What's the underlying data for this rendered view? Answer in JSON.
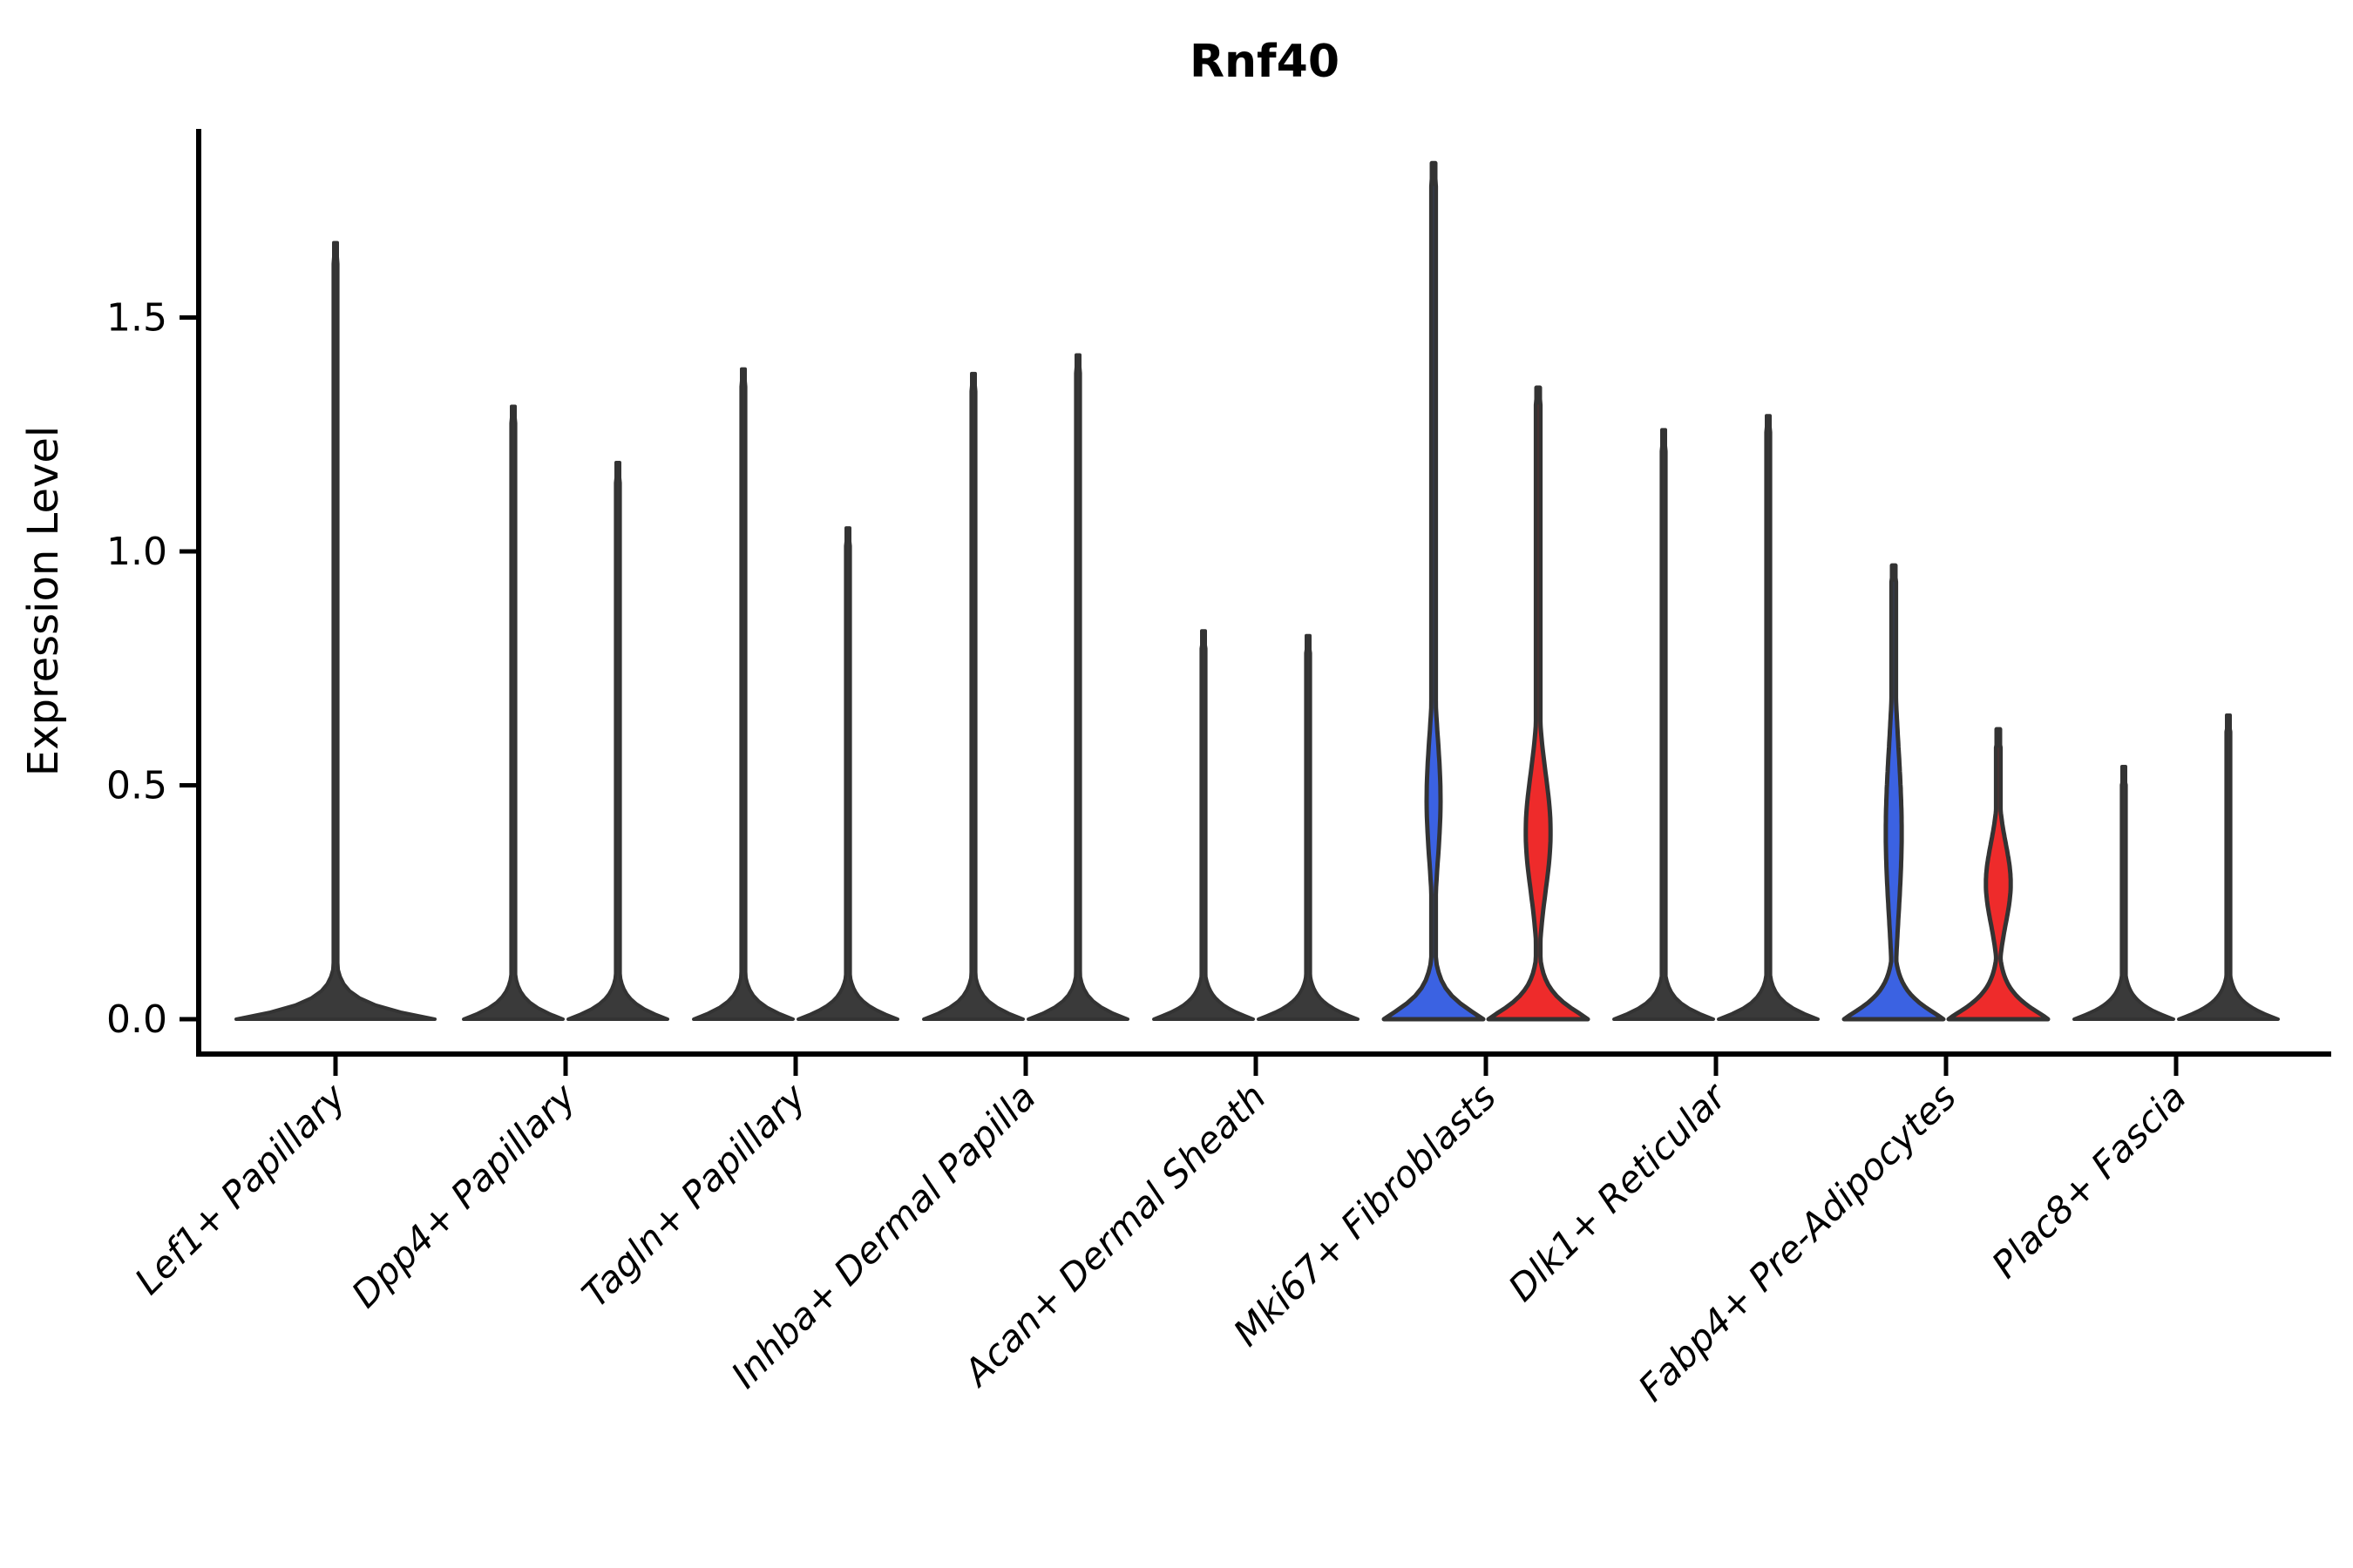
{
  "title": "Rnf40",
  "axes": {
    "ylabel": "Expression Level",
    "ytick_labels": [
      "0.0",
      "0.5",
      "1.0",
      "1.5"
    ],
    "ytick_values": [
      0.0,
      0.5,
      1.0,
      1.5
    ]
  },
  "colors": {
    "background": "#ffffff",
    "stroke": "#333333",
    "dark_fill": "#3a3a3a",
    "blue": "#3b62e2",
    "red": "#ee2b2b"
  },
  "chart_data": {
    "type": "violin",
    "title": "Rnf40",
    "xlabel": "",
    "ylabel": "Expression Level",
    "ylim": [
      -0.08,
      1.9
    ],
    "yticks": [
      0.0,
      0.5,
      1.0,
      1.5
    ],
    "grid": false,
    "legend": "none",
    "categories": [
      "Lef1+ Papillary",
      "Dpp4+ Papillary",
      "Tagln+ Papillary",
      "Inhba+ Dermal Papilla",
      "Acan+ Dermal Sheath",
      "Mki67+ Fibroblasts",
      "Dlk1+ Reticular",
      "Fabp4+ Pre-Adipocytes",
      "Plac8+ Fascia"
    ],
    "violins": [
      {
        "category": "Lef1+ Papillary",
        "layout": "single",
        "violins": [
          {
            "position": "center",
            "max_expression": 1.66,
            "bulk_at_zero": true,
            "fill": "dark"
          }
        ]
      },
      {
        "category": "Dpp4+ Papillary",
        "layout": "split",
        "violins": [
          {
            "position": "left",
            "max_expression": 1.31,
            "bulk_at_zero": true,
            "fill": "dark"
          },
          {
            "position": "right",
            "max_expression": 1.19,
            "bulk_at_zero": true,
            "fill": "dark"
          }
        ]
      },
      {
        "category": "Tagln+ Papillary",
        "layout": "split",
        "violins": [
          {
            "position": "left",
            "max_expression": 1.39,
            "bulk_at_zero": true,
            "fill": "dark"
          },
          {
            "position": "right",
            "max_expression": 1.05,
            "bulk_at_zero": true,
            "fill": "dark"
          }
        ]
      },
      {
        "category": "Inhba+ Dermal Papilla",
        "layout": "split",
        "violins": [
          {
            "position": "left",
            "max_expression": 1.38,
            "bulk_at_zero": true,
            "fill": "dark"
          },
          {
            "position": "right",
            "max_expression": 1.42,
            "bulk_at_zero": true,
            "fill": "dark"
          }
        ]
      },
      {
        "category": "Acan+ Dermal Sheath",
        "layout": "split",
        "violins": [
          {
            "position": "left",
            "max_expression": 0.83,
            "bulk_at_zero": true,
            "fill": "dark"
          },
          {
            "position": "right",
            "max_expression": 0.82,
            "bulk_at_zero": true,
            "fill": "dark"
          }
        ]
      },
      {
        "category": "Mki67+ Fibroblasts",
        "layout": "split",
        "violins": [
          {
            "position": "left",
            "max_expression": 1.83,
            "bulk_at_zero": true,
            "fill": "blue",
            "bulge": {
              "center": 0.47,
              "span": [
                0.22,
                0.78
              ],
              "halfwidth_frac": 0.14
            }
          },
          {
            "position": "right",
            "max_expression": 1.35,
            "bulk_at_zero": true,
            "fill": "red",
            "bulge": {
              "center": 0.4,
              "span": [
                0.15,
                0.68
              ],
              "halfwidth_frac": 0.25
            }
          }
        ]
      },
      {
        "category": "Dlk1+ Reticular",
        "layout": "split",
        "violins": [
          {
            "position": "left",
            "max_expression": 1.26,
            "bulk_at_zero": true,
            "fill": "dark"
          },
          {
            "position": "right",
            "max_expression": 1.29,
            "bulk_at_zero": true,
            "fill": "dark"
          }
        ]
      },
      {
        "category": "Fabp4+ Pre-Adipocytes",
        "layout": "split",
        "violins": [
          {
            "position": "left",
            "max_expression": 0.97,
            "bulk_at_zero": true,
            "fill": "blue",
            "bulge": {
              "center": 0.4,
              "span": [
                0.12,
                0.88
              ],
              "halfwidth_frac": 0.16
            }
          },
          {
            "position": "right",
            "max_expression": 0.62,
            "bulk_at_zero": true,
            "fill": "red",
            "bulge": {
              "center": 0.29,
              "span": [
                0.14,
                0.5
              ],
              "halfwidth_frac": 0.25
            }
          }
        ]
      },
      {
        "category": "Plac8+ Fascia",
        "layout": "split",
        "violins": [
          {
            "position": "left",
            "max_expression": 0.54,
            "bulk_at_zero": true,
            "fill": "dark"
          },
          {
            "position": "right",
            "max_expression": 0.65,
            "bulk_at_zero": true,
            "fill": "dark"
          }
        ]
      }
    ]
  }
}
